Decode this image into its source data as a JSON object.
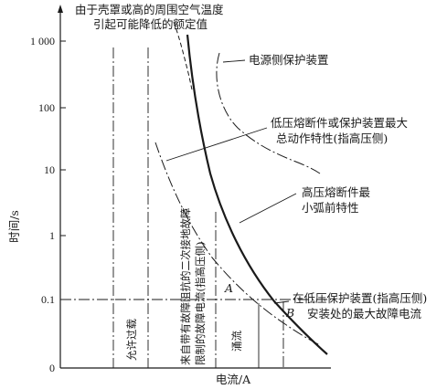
{
  "axes": {
    "y_label": "时间/s",
    "x_label": "电流/A",
    "y_ticks": [
      "1 000",
      "100",
      "10",
      "1",
      "0.1",
      "0"
    ]
  },
  "annotations": {
    "top_note_line1": "由于壳罩或高的周围空气温度",
    "top_note_line2": "引起可能降低的额定值",
    "source_side": "电源侧保护装置",
    "lv_fuse_line1": "低压熔断件或保护装置最大",
    "lv_fuse_line2": "总动作特性(指高压侧)",
    "hv_fuse_line1": "高压熔断件最",
    "hv_fuse_line2": "小弧前特性",
    "fault_line1": "在低压保护装置(指高压侧)",
    "fault_line2": "安装处的最大故障电流",
    "overload": "允许过载",
    "secondary_fault_line1": "来自带有故障阻抗的二次接地故障",
    "secondary_fault_line2": "限制的故障电流(指高压侧)",
    "inrush": "涌流",
    "point_a": "A",
    "point_b": "B"
  },
  "colors": {
    "ink": "#1a1a1a",
    "background": "#ffffff"
  }
}
